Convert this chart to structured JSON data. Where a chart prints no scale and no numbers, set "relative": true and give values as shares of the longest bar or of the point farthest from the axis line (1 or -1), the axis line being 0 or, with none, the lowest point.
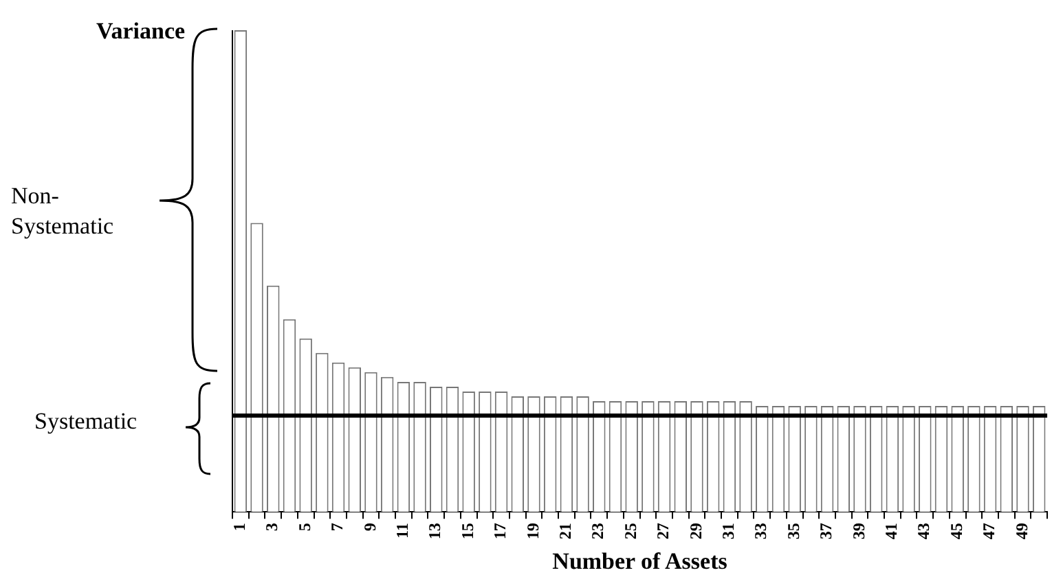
{
  "chart_data": {
    "type": "bar",
    "xlabel": "Number of Assets",
    "relative": true,
    "categories": [
      "1",
      null,
      "3",
      null,
      "5",
      null,
      "7",
      null,
      "9",
      null,
      "11",
      null,
      "13",
      null,
      "15",
      null,
      "17",
      null,
      "19",
      null,
      "21",
      null,
      "23",
      null,
      "25",
      null,
      "27",
      null,
      "29",
      null,
      "31",
      null,
      "33",
      null,
      "35",
      null,
      "37",
      null,
      "39",
      null,
      "41",
      null,
      "43",
      null,
      "45",
      null,
      "47",
      null,
      "49",
      null
    ],
    "values": [
      1,
      0.6,
      0.47,
      0.4,
      0.36,
      0.33,
      0.31,
      0.3,
      0.29,
      0.28,
      0.27,
      0.27,
      0.26,
      0.26,
      0.25,
      0.25,
      0.25,
      0.24,
      0.24,
      0.24,
      0.24,
      0.24,
      0.23,
      0.23,
      0.23,
      0.23,
      0.23,
      0.23,
      0.23,
      0.23,
      0.23,
      0.23,
      0.22,
      0.22,
      0.22,
      0.22,
      0.22,
      0.22,
      0.22,
      0.22,
      0.22,
      0.22,
      0.22,
      0.22,
      0.22,
      0.22,
      0.22,
      0.22,
      0.22,
      0.22
    ],
    "color": "#ffffff",
    "ref_lines": [
      {
        "axis": "y",
        "value": 0.2,
        "color": "#000000"
      }
    ],
    "annotations": [
      "Variance",
      "Non-Systematic",
      "Systematic"
    ],
    "grid": false,
    "legend": false
  }
}
